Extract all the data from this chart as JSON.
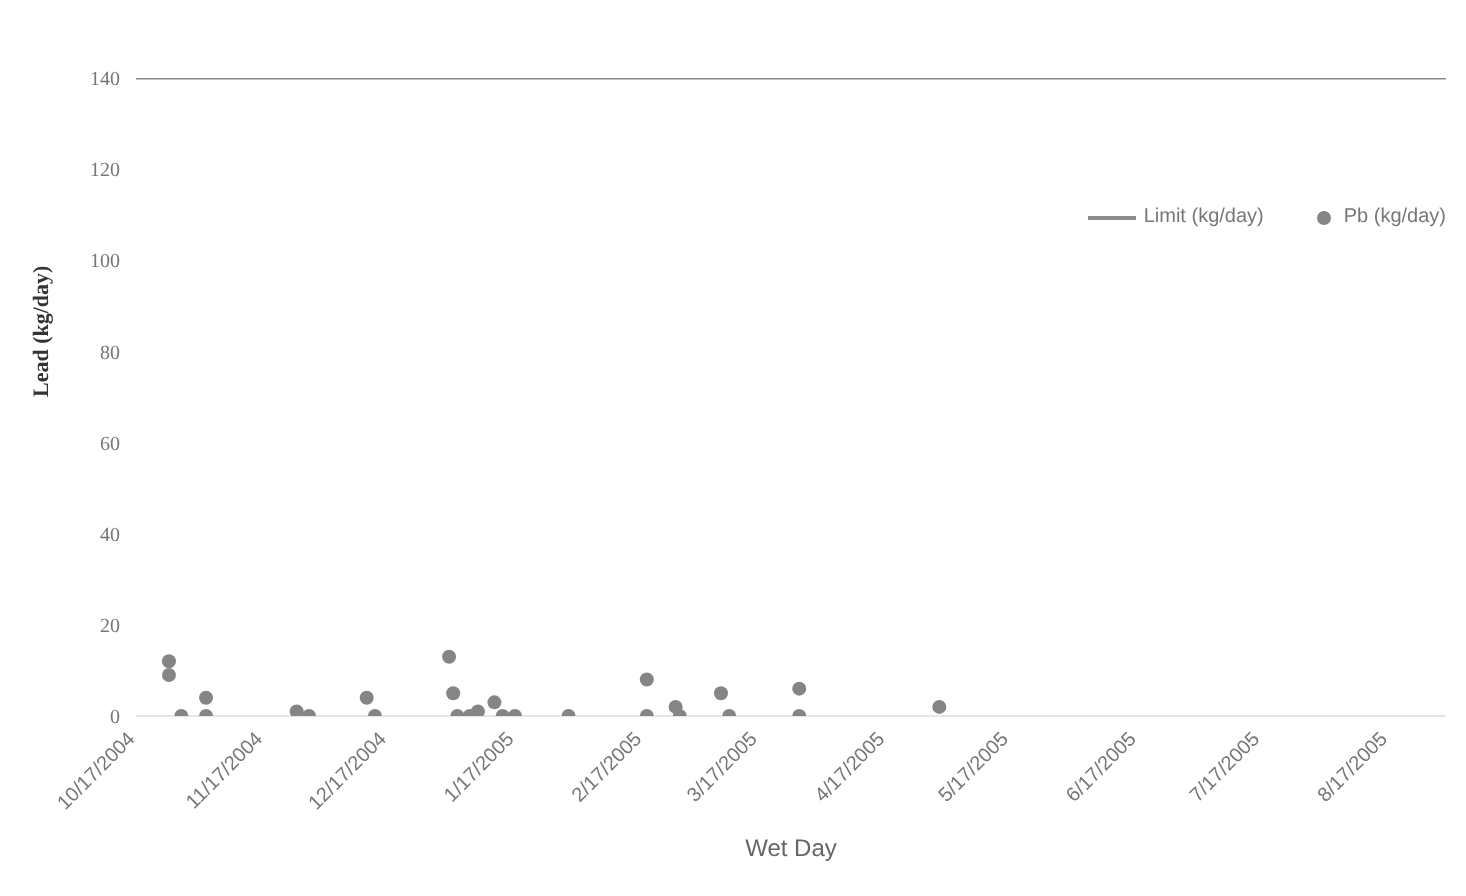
{
  "chart_data": {
    "type": "scatter",
    "xlabel": "Wet Day",
    "ylabel": "Lead (kg/day)",
    "xlim": [
      "2004-10-17",
      "2005-08-31"
    ],
    "xticks": [
      {
        "value": "2004-10-17",
        "label": "10/17/2004"
      },
      {
        "value": "2004-11-17",
        "label": "11/17/2004"
      },
      {
        "value": "2004-12-17",
        "label": "12/17/2004"
      },
      {
        "value": "2005-01-17",
        "label": "1/17/2005"
      },
      {
        "value": "2005-02-17",
        "label": "2/17/2005"
      },
      {
        "value": "2005-03-17",
        "label": "3/17/2005"
      },
      {
        "value": "2005-04-17",
        "label": "4/17/2005"
      },
      {
        "value": "2005-05-17",
        "label": "5/17/2005"
      },
      {
        "value": "2005-06-17",
        "label": "6/17/2005"
      },
      {
        "value": "2005-07-17",
        "label": "7/17/2005"
      },
      {
        "value": "2005-08-17",
        "label": "8/17/2005"
      }
    ],
    "ylim": [
      0,
      140
    ],
    "yticks": [
      0,
      20,
      40,
      60,
      80,
      100,
      120,
      140
    ],
    "grid": false,
    "legend": "top right",
    "series": [
      {
        "name": "Limit (kg/day)",
        "type": "line",
        "color": "#8c8c8c",
        "marker": "none",
        "line_style": "solid",
        "x": [
          "2004-10-17",
          "2005-08-31"
        ],
        "values": [
          140,
          140
        ]
      },
      {
        "name": "Pb (kg/day)",
        "color": "#858585",
        "marker": "circle",
        "x": [
          "2004-10-25",
          "2004-10-25",
          "2004-10-28",
          "2004-11-03",
          "2004-11-03",
          "2004-11-25",
          "2004-11-28",
          "2004-12-12",
          "2004-12-14",
          "2005-01-01",
          "2005-01-02",
          "2005-01-03",
          "2005-01-06",
          "2005-01-08",
          "2005-01-12",
          "2005-01-14",
          "2005-01-17",
          "2005-01-30",
          "2005-02-18",
          "2005-02-18",
          "2005-02-25",
          "2005-02-26",
          "2005-03-08",
          "2005-03-10",
          "2005-03-27",
          "2005-03-27",
          "2005-04-30"
        ],
        "values": [
          12,
          9,
          0,
          4,
          0,
          1,
          0,
          4,
          0,
          13,
          5,
          0,
          0,
          1,
          3,
          0,
          0,
          0,
          8,
          0,
          2,
          0,
          5,
          0,
          6,
          0,
          2
        ]
      }
    ]
  }
}
